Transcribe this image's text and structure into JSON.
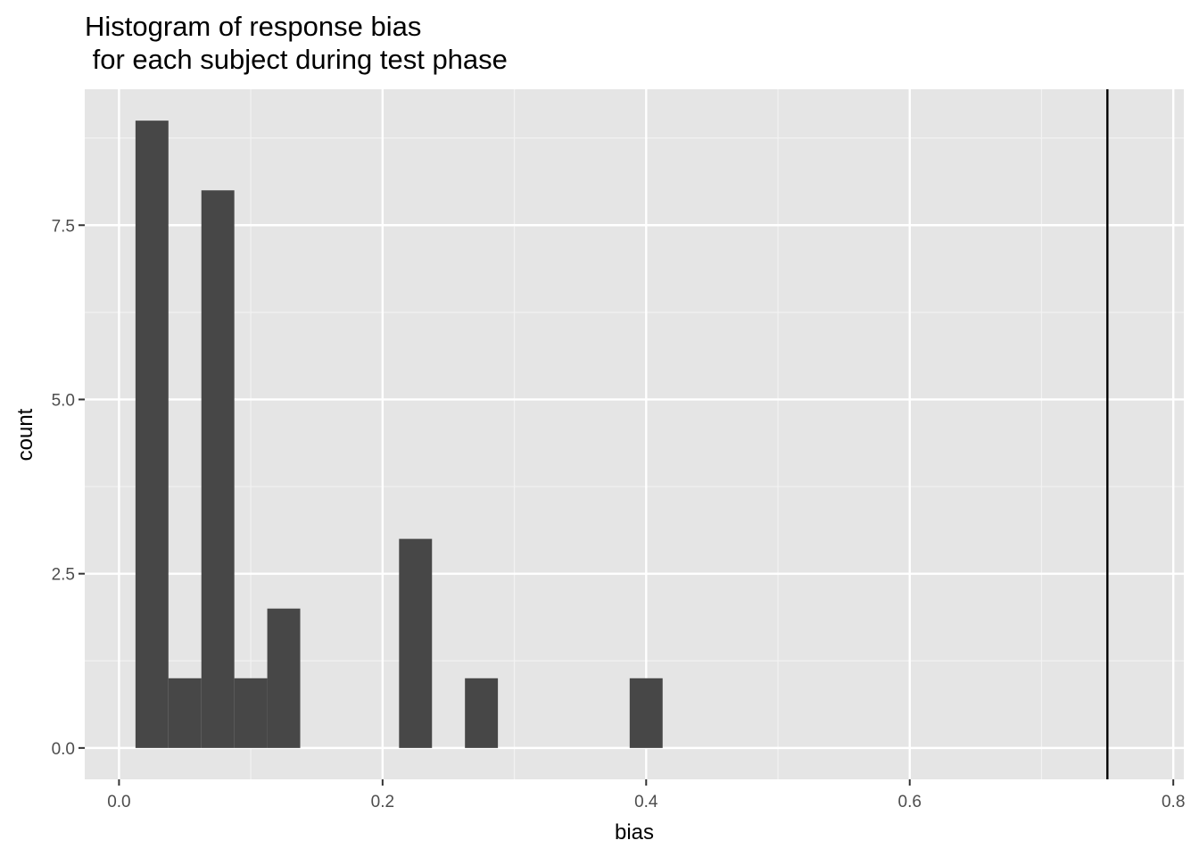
{
  "chart_data": {
    "type": "histogram",
    "title": [
      "Histogram of response bias",
      " for each subject during test phase"
    ],
    "x_label": "bias",
    "y_label": "count",
    "bins": [
      0.0125,
      0.0375,
      0.0625,
      0.0875,
      0.1125,
      0.1375,
      0.1625,
      0.1875,
      0.2125,
      0.2375,
      0.2625,
      0.2875,
      0.3125,
      0.3375,
      0.3625,
      0.3875,
      0.4125
    ],
    "values": [
      9,
      1,
      8,
      1,
      2,
      0,
      0,
      0,
      3,
      0,
      1,
      0,
      0,
      0,
      0,
      1
    ],
    "color": "#474747",
    "vline": 0.75,
    "xlim": [
      -0.026,
      0.808
    ],
    "ylim": [
      -0.45,
      9.45
    ],
    "xticks": [
      {
        "value": 0,
        "label": "0.0"
      },
      0.2,
      0.4,
      0.6,
      0.8
    ],
    "yticks": [
      {
        "value": 0,
        "label": "0.0"
      },
      2.5,
      {
        "value": 5,
        "label": "5.0"
      },
      7.5
    ],
    "x_minor_grid": [
      0.1,
      0.3,
      0.5,
      0.7
    ],
    "y_minor_grid": [
      1.25,
      3.75,
      6.25,
      8.75
    ],
    "grid": true
  }
}
